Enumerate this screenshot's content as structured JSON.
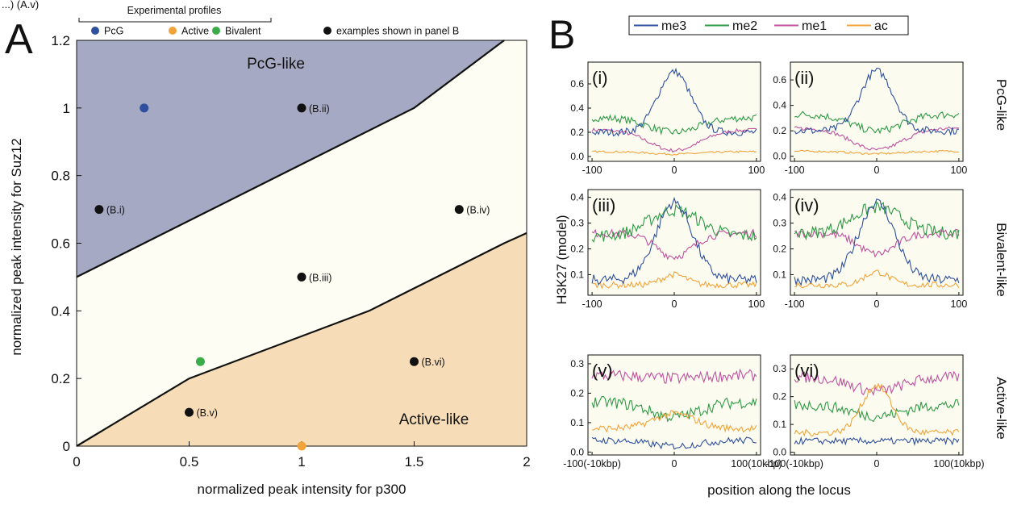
{
  "panel_a": {
    "letter": "A",
    "header_fragment": "...) (A.v)",
    "legend_group_title": "Experimental profiles",
    "region_labels": {
      "pcg": "PcG-like",
      "active": "Active-like"
    },
    "colors": {
      "pcg_region": "#a6a9c4",
      "middle_region": "#fdfdf3",
      "active_region": "#f6ddb8",
      "PcG": "#2f4f9f",
      "Active": "#f2a33a",
      "Bivalent": "#3aac4a",
      "examples": "#111111"
    }
  },
  "panel_b": {
    "letter": "B",
    "ylabel": "H3K27 (model)",
    "xlabel": "position along the locus",
    "row_labels": [
      "PcG-like",
      "Bivalent-like",
      "Active-like"
    ],
    "subplot_labels": [
      "(i)",
      "(ii)",
      "(iii)",
      "(iv)",
      "(v)",
      "(vi)"
    ],
    "legend": [
      {
        "name": "me3",
        "color": "#2f4f9f"
      },
      {
        "name": "me2",
        "color": "#2e9a45"
      },
      {
        "name": "me1",
        "color": "#c0519f"
      },
      {
        "name": "ac",
        "color": "#f2a33a"
      }
    ],
    "bg_color": "#fbfcef"
  },
  "chart_data": [
    {
      "type": "scatter",
      "xlabel": "normalized peak intensity for p300",
      "ylabel": "normalized peak intensity for Suz12",
      "xlim": [
        0,
        2
      ],
      "ylim": [
        0,
        1.2
      ],
      "x_ticks": [
        "0",
        "0.5",
        "1",
        "1.5",
        "2"
      ],
      "y_ticks": [
        "0",
        "0.2",
        "0.4",
        "0.6",
        "0.8",
        "1",
        "1.2"
      ],
      "legend_placement": "top",
      "series": [
        {
          "name": "PcG",
          "points": [
            {
              "x": 0.3,
              "y": 1.0
            }
          ]
        },
        {
          "name": "Active",
          "points": [
            {
              "x": 1.0,
              "y": 0.0
            }
          ]
        },
        {
          "name": "Bivalent",
          "points": [
            {
              "x": 0.55,
              "y": 0.25
            }
          ]
        },
        {
          "name": "examples shown in panel B",
          "points": [
            {
              "x": 0.1,
              "y": 0.7,
              "label": "(B.i)"
            },
            {
              "x": 1.0,
              "y": 1.0,
              "label": "(B.ii)"
            },
            {
              "x": 1.0,
              "y": 0.5,
              "label": "(B.iii)"
            },
            {
              "x": 1.7,
              "y": 0.7,
              "label": "(B.iv)"
            },
            {
              "x": 0.5,
              "y": 0.1,
              "label": "(B.v)"
            },
            {
              "x": 1.5,
              "y": 0.25,
              "label": "(B.vi)"
            }
          ]
        }
      ],
      "boundaries": {
        "upper": [
          [
            0,
            0.5
          ],
          [
            1.5,
            1.0
          ],
          [
            1.9,
            1.2
          ]
        ],
        "lower": [
          [
            0,
            0
          ],
          [
            0.5,
            0.2
          ],
          [
            1.3,
            0.4
          ],
          [
            1.9,
            0.6
          ],
          [
            2.0,
            0.63
          ]
        ]
      }
    },
    {
      "type": "line",
      "panels": [
        {
          "label": "(i)",
          "x_ticks": [
            "-100",
            "0",
            "100"
          ],
          "y_ticks": [
            "0.0",
            "0.2",
            "0.4",
            "0.6"
          ],
          "ylim": [
            -0.04,
            0.78
          ],
          "profiles": {
            "me3": {
              "base": 0.2,
              "peak": 0.7,
              "width": 20,
              "noise": 0.03
            },
            "me2": {
              "base": 0.32,
              "peak": 0.2,
              "width": 30,
              "noise": 0.03
            },
            "me1": {
              "base": 0.22,
              "peak": 0.05,
              "width": 30,
              "noise": 0.015
            },
            "ac": {
              "base": 0.04,
              "peak": 0.02,
              "width": 30,
              "noise": 0.008
            }
          }
        },
        {
          "label": "(ii)",
          "x_ticks": [
            "-100",
            "0",
            "100"
          ],
          "y_ticks": [
            "0.0",
            "0.2",
            "0.4",
            "0.6"
          ],
          "ylim": [
            -0.04,
            0.74
          ],
          "profiles": {
            "me3": {
              "base": 0.2,
              "peak": 0.67,
              "width": 20,
              "noise": 0.03
            },
            "me2": {
              "base": 0.33,
              "peak": 0.2,
              "width": 30,
              "noise": 0.03
            },
            "me1": {
              "base": 0.22,
              "peak": 0.05,
              "width": 30,
              "noise": 0.015
            },
            "ac": {
              "base": 0.04,
              "peak": 0.02,
              "width": 30,
              "noise": 0.008
            }
          }
        },
        {
          "label": "(iii)",
          "x_ticks": [
            "-100",
            "0",
            "100"
          ],
          "y_ticks": [
            "0.1",
            "0.2",
            "0.3",
            "0.4"
          ],
          "ylim": [
            0.02,
            0.43
          ],
          "profiles": {
            "me3": {
              "base": 0.08,
              "peak": 0.38,
              "width": 22,
              "noise": 0.02
            },
            "me2": {
              "base": 0.25,
              "peak": 0.35,
              "width": 30,
              "noise": 0.025
            },
            "me1": {
              "base": 0.26,
              "peak": 0.17,
              "width": 22,
              "noise": 0.015
            },
            "ac": {
              "base": 0.06,
              "peak": 0.1,
              "width": 15,
              "noise": 0.012
            }
          }
        },
        {
          "label": "(iv)",
          "x_ticks": [
            "-100",
            "0",
            "100"
          ],
          "y_ticks": [
            "0.1",
            "0.2",
            "0.3",
            "0.4"
          ],
          "ylim": [
            0.02,
            0.43
          ],
          "profiles": {
            "me3": {
              "base": 0.08,
              "peak": 0.38,
              "width": 22,
              "noise": 0.02
            },
            "me2": {
              "base": 0.26,
              "peak": 0.36,
              "width": 30,
              "noise": 0.025
            },
            "me1": {
              "base": 0.26,
              "peak": 0.18,
              "width": 22,
              "noise": 0.015
            },
            "ac": {
              "base": 0.06,
              "peak": 0.11,
              "width": 15,
              "noise": 0.012
            }
          }
        },
        {
          "label": "(v)",
          "x_ticks": [
            "-100(-10kbp)",
            "0",
            "100(10kbp)"
          ],
          "y_ticks": [
            "0.0",
            "0.1",
            "0.2",
            "0.3"
          ],
          "ylim": [
            -0.01,
            0.33
          ],
          "profiles": {
            "me3": {
              "base": 0.04,
              "peak": 0.02,
              "width": 30,
              "noise": 0.012
            },
            "me2": {
              "base": 0.17,
              "peak": 0.12,
              "width": 30,
              "noise": 0.02
            },
            "me1": {
              "base": 0.26,
              "peak": 0.25,
              "width": 30,
              "noise": 0.02
            },
            "ac": {
              "base": 0.08,
              "peak": 0.13,
              "width": 25,
              "noise": 0.012
            }
          }
        },
        {
          "label": "(vi)",
          "x_ticks": [
            "-100(-10kbp)",
            "0",
            "100(10kbp)"
          ],
          "y_ticks": [
            "0.0",
            "0.1",
            "0.2",
            "0.3"
          ],
          "ylim": [
            -0.01,
            0.35
          ],
          "profiles": {
            "me3": {
              "base": 0.04,
              "peak": 0.04,
              "width": 30,
              "noise": 0.012
            },
            "me2": {
              "base": 0.17,
              "peak": 0.13,
              "width": 30,
              "noise": 0.02
            },
            "me1": {
              "base": 0.27,
              "peak": 0.22,
              "width": 30,
              "noise": 0.02
            },
            "ac": {
              "base": 0.07,
              "peak": 0.24,
              "width": 18,
              "noise": 0.012
            }
          }
        }
      ]
    }
  ]
}
